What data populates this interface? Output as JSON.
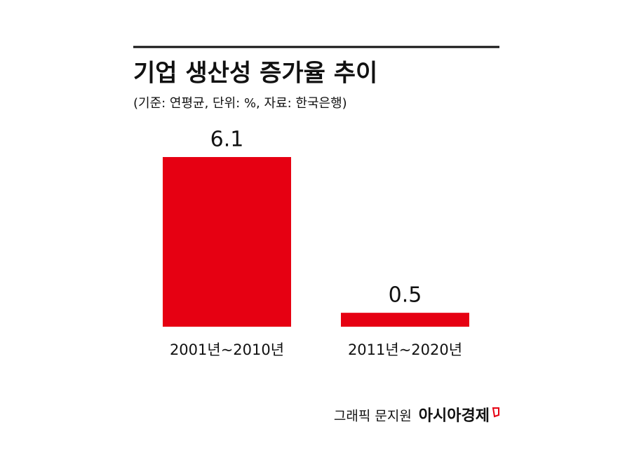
{
  "chart_data": {
    "type": "bar",
    "title": "기업 생산성 증가율 추이",
    "subtitle": "(기준: 연평균, 단위: %, 자료: 한국은행)",
    "categories": [
      "2001년~2010년",
      "2011년~2020년"
    ],
    "values": [
      6.1,
      0.5
    ],
    "color": "#e60012",
    "credit": "그래픽 문지원",
    "source": "아시아경제"
  }
}
